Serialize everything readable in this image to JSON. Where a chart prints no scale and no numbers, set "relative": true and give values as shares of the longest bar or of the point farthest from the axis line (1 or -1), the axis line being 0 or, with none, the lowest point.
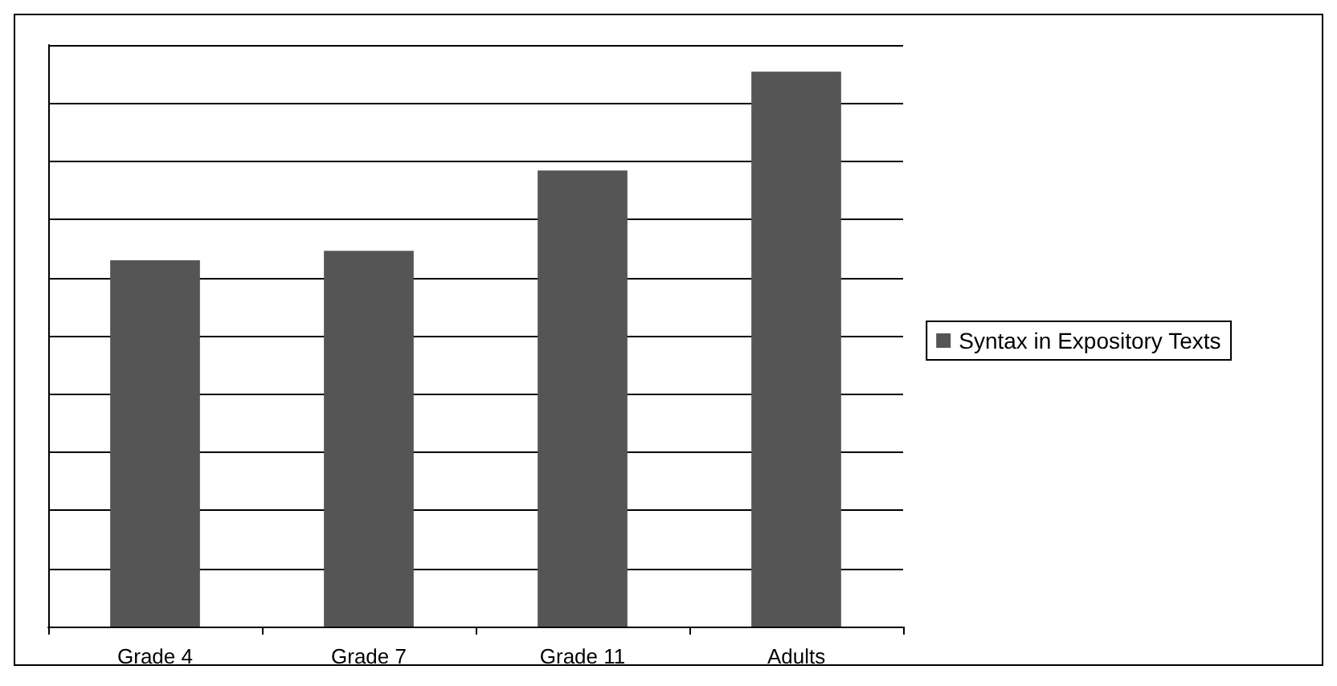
{
  "chart_data": {
    "type": "bar",
    "relative": true,
    "categories": [
      "Grade 4",
      "Grade 7",
      "Grade 11",
      "Adults"
    ],
    "series": [
      {
        "name": "Syntax in Expository Texts",
        "color": "#555555",
        "values": [
          0.66,
          0.677,
          0.822,
          1
        ]
      }
    ],
    "grid": "y",
    "legend": "right"
  }
}
